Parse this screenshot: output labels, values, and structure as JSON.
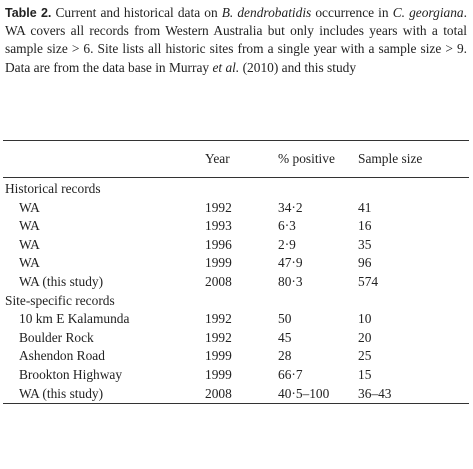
{
  "caption": {
    "label": "Table 2.",
    "segments": [
      "Current and historical data on ",
      "B. dendrobatidis",
      " occurrence in ",
      "C. georgiana",
      ". WA covers all records from Western Australia but only includes years with a total sample size > 6. Site lists all historic sites from a single year with a sample size > 9. Data are from the data base in Murray ",
      "et al.",
      " (2010) and this study"
    ]
  },
  "table": {
    "columns": [
      "Year",
      "% positive",
      "Sample size"
    ],
    "sections": [
      {
        "title": "Historical records",
        "rows": [
          [
            "WA",
            "1992",
            "34·2",
            "41"
          ],
          [
            "WA",
            "1993",
            "6·3",
            "16"
          ],
          [
            "WA",
            "1996",
            "2·9",
            "35"
          ],
          [
            "WA",
            "1999",
            "47·9",
            "96"
          ],
          [
            "WA (this study)",
            "2008",
            "80·3",
            "574"
          ]
        ]
      },
      {
        "title": "Site-specific records",
        "rows": [
          [
            "10 km E Kalamunda",
            "1992",
            "50",
            "10"
          ],
          [
            "Boulder Rock",
            "1992",
            "45",
            "20"
          ],
          [
            "Ashendon Road",
            "1999",
            "28",
            "25"
          ],
          [
            "Brookton Highway",
            "1999",
            "66·7",
            "15"
          ],
          [
            "WA (this study)",
            "2008",
            "40·5–100",
            "36–43"
          ]
        ]
      }
    ]
  }
}
